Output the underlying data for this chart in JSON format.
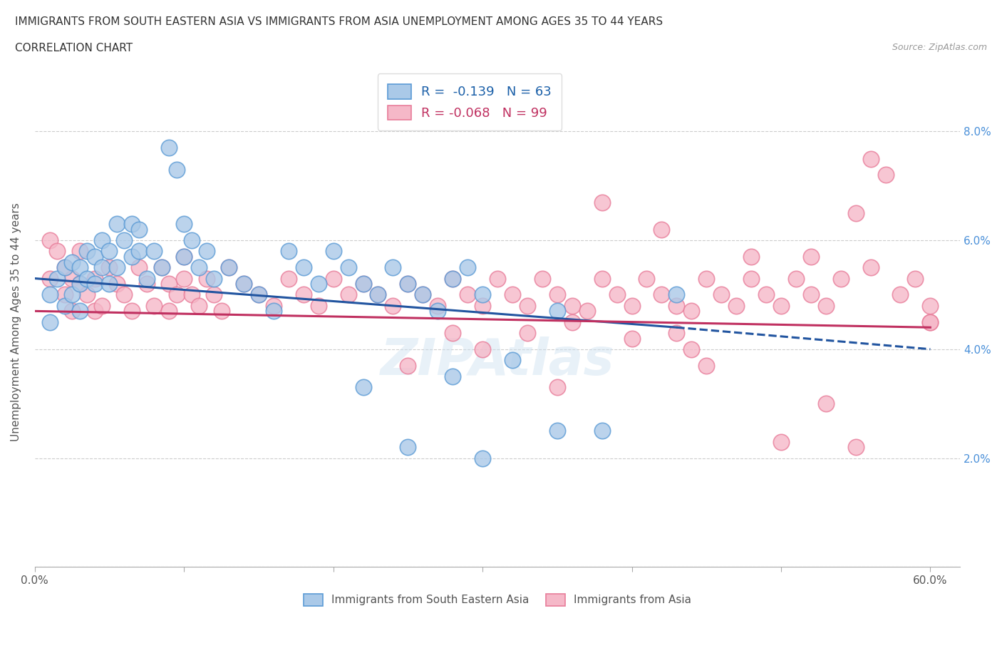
{
  "title_line1": "IMMIGRANTS FROM SOUTH EASTERN ASIA VS IMMIGRANTS FROM ASIA UNEMPLOYMENT AMONG AGES 35 TO 44 YEARS",
  "title_line2": "CORRELATION CHART",
  "source_text": "Source: ZipAtlas.com",
  "ylabel": "Unemployment Among Ages 35 to 44 years",
  "xlim": [
    0.0,
    0.62
  ],
  "ylim": [
    0.0,
    0.09
  ],
  "xticks": [
    0.0,
    0.1,
    0.2,
    0.3,
    0.4,
    0.5,
    0.6
  ],
  "xticklabels_show": [
    "0.0%",
    "",
    "",
    "",
    "",
    "",
    "60.0%"
  ],
  "yticks": [
    0.0,
    0.02,
    0.04,
    0.06,
    0.08
  ],
  "yticklabels_right": [
    "",
    "2.0%",
    "4.0%",
    "6.0%",
    "8.0%"
  ],
  "blue_R": -0.139,
  "blue_N": 63,
  "pink_R": -0.068,
  "pink_N": 99,
  "blue_color": "#aac9e8",
  "pink_color": "#f5b8c8",
  "blue_edge_color": "#5b9bd5",
  "pink_edge_color": "#e87d9a",
  "blue_line_color": "#2255a0",
  "pink_line_color": "#c03060",
  "legend_blue_label": "Immigrants from South Eastern Asia",
  "legend_pink_label": "Immigrants from Asia",
  "watermark": "ZIPAtlas",
  "blue_line_start_x": 0.0,
  "blue_line_start_y": 0.053,
  "blue_line_end_solid_x": 0.43,
  "blue_line_end_solid_y": 0.044,
  "blue_line_end_dash_x": 0.6,
  "blue_line_end_dash_y": 0.04,
  "pink_line_start_x": 0.0,
  "pink_line_start_y": 0.047,
  "pink_line_end_x": 0.6,
  "pink_line_end_y": 0.044,
  "blue_scatter_x": [
    0.01,
    0.01,
    0.015,
    0.02,
    0.02,
    0.025,
    0.025,
    0.03,
    0.03,
    0.03,
    0.035,
    0.035,
    0.04,
    0.04,
    0.045,
    0.045,
    0.05,
    0.05,
    0.055,
    0.055,
    0.06,
    0.065,
    0.065,
    0.07,
    0.07,
    0.075,
    0.08,
    0.085,
    0.09,
    0.095,
    0.1,
    0.1,
    0.105,
    0.11,
    0.115,
    0.12,
    0.13,
    0.14,
    0.15,
    0.16,
    0.17,
    0.18,
    0.19,
    0.2,
    0.21,
    0.22,
    0.23,
    0.24,
    0.25,
    0.26,
    0.27,
    0.28,
    0.29,
    0.3,
    0.22,
    0.25,
    0.28,
    0.32,
    0.35,
    0.38,
    0.3,
    0.35,
    0.43
  ],
  "blue_scatter_y": [
    0.05,
    0.045,
    0.053,
    0.055,
    0.048,
    0.056,
    0.05,
    0.055,
    0.052,
    0.047,
    0.058,
    0.053,
    0.057,
    0.052,
    0.06,
    0.055,
    0.058,
    0.052,
    0.063,
    0.055,
    0.06,
    0.063,
    0.057,
    0.062,
    0.058,
    0.053,
    0.058,
    0.055,
    0.077,
    0.073,
    0.063,
    0.057,
    0.06,
    0.055,
    0.058,
    0.053,
    0.055,
    0.052,
    0.05,
    0.047,
    0.058,
    0.055,
    0.052,
    0.058,
    0.055,
    0.052,
    0.05,
    0.055,
    0.052,
    0.05,
    0.047,
    0.053,
    0.055,
    0.05,
    0.033,
    0.022,
    0.035,
    0.038,
    0.025,
    0.025,
    0.02,
    0.047,
    0.05
  ],
  "pink_scatter_x": [
    0.01,
    0.01,
    0.015,
    0.02,
    0.02,
    0.025,
    0.025,
    0.03,
    0.03,
    0.035,
    0.04,
    0.04,
    0.045,
    0.05,
    0.055,
    0.06,
    0.065,
    0.07,
    0.075,
    0.08,
    0.085,
    0.09,
    0.09,
    0.095,
    0.1,
    0.1,
    0.105,
    0.11,
    0.115,
    0.12,
    0.125,
    0.13,
    0.14,
    0.15,
    0.16,
    0.17,
    0.18,
    0.19,
    0.2,
    0.21,
    0.22,
    0.23,
    0.24,
    0.25,
    0.26,
    0.27,
    0.28,
    0.29,
    0.3,
    0.31,
    0.32,
    0.33,
    0.34,
    0.35,
    0.36,
    0.37,
    0.38,
    0.39,
    0.4,
    0.41,
    0.42,
    0.43,
    0.44,
    0.45,
    0.46,
    0.47,
    0.48,
    0.49,
    0.5,
    0.51,
    0.52,
    0.53,
    0.54,
    0.55,
    0.56,
    0.57,
    0.58,
    0.59,
    0.6,
    0.6,
    0.25,
    0.3,
    0.35,
    0.4,
    0.45,
    0.5,
    0.55,
    0.38,
    0.42,
    0.48,
    0.52,
    0.56,
    0.36,
    0.44,
    0.28,
    0.33,
    0.43,
    0.53,
    0.6
  ],
  "pink_scatter_y": [
    0.06,
    0.053,
    0.058,
    0.055,
    0.05,
    0.053,
    0.047,
    0.058,
    0.052,
    0.05,
    0.053,
    0.047,
    0.048,
    0.055,
    0.052,
    0.05,
    0.047,
    0.055,
    0.052,
    0.048,
    0.055,
    0.052,
    0.047,
    0.05,
    0.057,
    0.053,
    0.05,
    0.048,
    0.053,
    0.05,
    0.047,
    0.055,
    0.052,
    0.05,
    0.048,
    0.053,
    0.05,
    0.048,
    0.053,
    0.05,
    0.052,
    0.05,
    0.048,
    0.052,
    0.05,
    0.048,
    0.053,
    0.05,
    0.048,
    0.053,
    0.05,
    0.048,
    0.053,
    0.05,
    0.048,
    0.047,
    0.053,
    0.05,
    0.048,
    0.053,
    0.05,
    0.048,
    0.047,
    0.053,
    0.05,
    0.048,
    0.053,
    0.05,
    0.048,
    0.053,
    0.05,
    0.048,
    0.053,
    0.065,
    0.075,
    0.072,
    0.05,
    0.053,
    0.048,
    0.045,
    0.037,
    0.04,
    0.033,
    0.042,
    0.037,
    0.023,
    0.022,
    0.067,
    0.062,
    0.057,
    0.057,
    0.055,
    0.045,
    0.04,
    0.043,
    0.043,
    0.043,
    0.03,
    0.045
  ]
}
